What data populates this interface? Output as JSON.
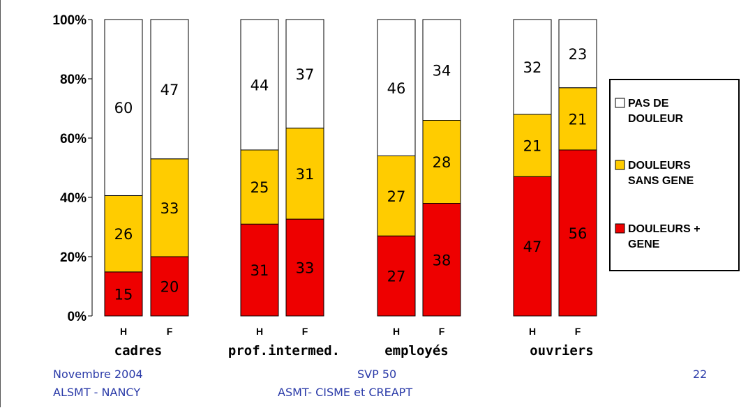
{
  "chart_data": {
    "type": "bar",
    "stacked": true,
    "percent_stacked": true,
    "ylim": [
      0,
      100
    ],
    "y_ticks": [
      "0%",
      "20%",
      "40%",
      "60%",
      "80%",
      "100%"
    ],
    "groups": [
      "cadres",
      "prof.intermed.",
      "employés",
      "ouvriers"
    ],
    "categories": [
      "H",
      "F",
      "H",
      "F",
      "H",
      "F",
      "H",
      "F"
    ],
    "series": [
      {
        "name": "DOULEURS + GENE",
        "color": "#ee0000",
        "values": [
          15,
          20,
          31,
          33,
          27,
          38,
          47,
          56
        ]
      },
      {
        "name": "DOULEURS SANS GENE",
        "color": "#ffcc00",
        "values": [
          26,
          33,
          25,
          31,
          27,
          28,
          21,
          21
        ]
      },
      {
        "name": "PAS DE DOULEUR",
        "color": "#ffffff",
        "values": [
          60,
          47,
          44,
          37,
          46,
          34,
          32,
          23
        ]
      }
    ],
    "legend": {
      "placement": "right",
      "items": [
        {
          "label_lines": [
            "PAS DE",
            "DOULEUR"
          ],
          "color": "#ffffff"
        },
        {
          "label_lines": [
            "DOULEURS",
            "SANS GENE"
          ],
          "color": "#ffcc00"
        },
        {
          "label_lines": [
            "DOULEURS +",
            "GENE"
          ],
          "color": "#ee0000"
        }
      ]
    },
    "grid": false
  },
  "footer": {
    "left_line1": "Novembre 2004",
    "left_line2": "ALSMT - NANCY",
    "center_line1": "SVP 50",
    "center_line2": "ASMT- CISME et CREAPT",
    "page_number": "22"
  }
}
